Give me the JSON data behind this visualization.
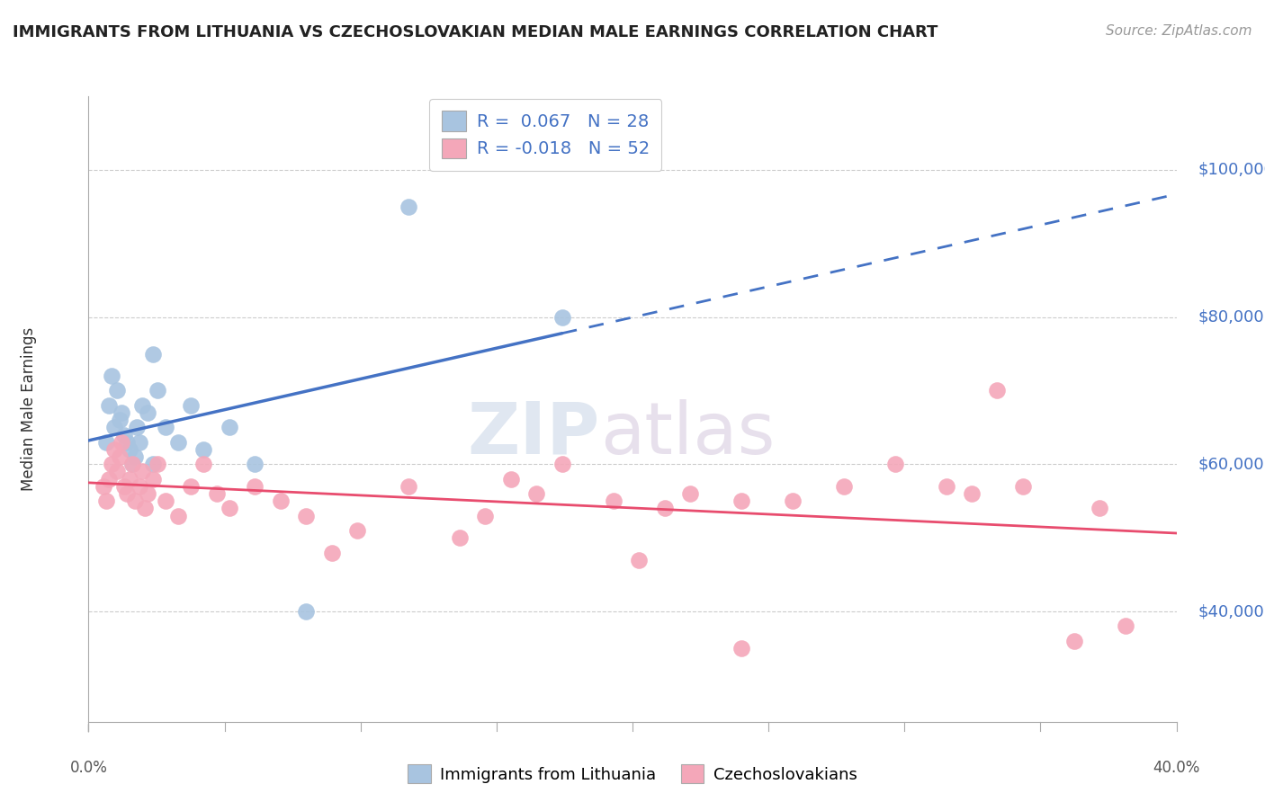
{
  "title": "IMMIGRANTS FROM LITHUANIA VS CZECHOSLOVAKIAN MEDIAN MALE EARNINGS CORRELATION CHART",
  "source": "Source: ZipAtlas.com",
  "ylabel": "Median Male Earnings",
  "y_ticks": [
    40000,
    60000,
    80000,
    100000
  ],
  "y_tick_labels": [
    "$40,000",
    "$60,000",
    "$80,000",
    "$100,000"
  ],
  "y_min": 25000,
  "y_max": 110000,
  "x_min": -0.005,
  "x_max": 0.42,
  "legend1_r": "0.067",
  "legend1_n": "28",
  "legend2_r": "-0.018",
  "legend2_n": "52",
  "blue_color": "#a8c4e0",
  "blue_line_color": "#4472c4",
  "pink_color": "#f4a7b9",
  "pink_line_color": "#e84c6e",
  "scatter_blue_x": [
    0.002,
    0.003,
    0.004,
    0.005,
    0.006,
    0.007,
    0.008,
    0.009,
    0.01,
    0.011,
    0.012,
    0.013,
    0.014,
    0.015,
    0.016,
    0.018,
    0.02,
    0.022,
    0.025,
    0.03,
    0.035,
    0.04,
    0.05,
    0.06,
    0.08,
    0.12,
    0.18,
    0.02
  ],
  "scatter_blue_y": [
    63000,
    68000,
    72000,
    65000,
    70000,
    66000,
    67000,
    64000,
    63000,
    62000,
    60000,
    61000,
    65000,
    63000,
    68000,
    67000,
    75000,
    70000,
    65000,
    63000,
    68000,
    62000,
    65000,
    60000,
    40000,
    95000,
    80000,
    60000
  ],
  "scatter_pink_x": [
    0.001,
    0.002,
    0.003,
    0.004,
    0.005,
    0.006,
    0.007,
    0.008,
    0.009,
    0.01,
    0.011,
    0.012,
    0.013,
    0.015,
    0.016,
    0.017,
    0.018,
    0.02,
    0.022,
    0.025,
    0.03,
    0.035,
    0.04,
    0.045,
    0.05,
    0.06,
    0.07,
    0.08,
    0.09,
    0.1,
    0.12,
    0.14,
    0.15,
    0.16,
    0.17,
    0.18,
    0.2,
    0.21,
    0.22,
    0.23,
    0.25,
    0.27,
    0.29,
    0.31,
    0.33,
    0.34,
    0.36,
    0.38,
    0.39,
    0.4,
    0.35,
    0.25
  ],
  "scatter_pink_y": [
    57000,
    55000,
    58000,
    60000,
    62000,
    59000,
    61000,
    63000,
    57000,
    56000,
    58000,
    60000,
    55000,
    57000,
    59000,
    54000,
    56000,
    58000,
    60000,
    55000,
    53000,
    57000,
    60000,
    56000,
    54000,
    57000,
    55000,
    53000,
    48000,
    51000,
    57000,
    50000,
    53000,
    58000,
    56000,
    60000,
    55000,
    47000,
    54000,
    56000,
    35000,
    55000,
    57000,
    60000,
    57000,
    56000,
    57000,
    36000,
    54000,
    38000,
    70000,
    55000
  ],
  "legend_labels": [
    "Immigrants from Lithuania",
    "Czechoslovakians"
  ]
}
